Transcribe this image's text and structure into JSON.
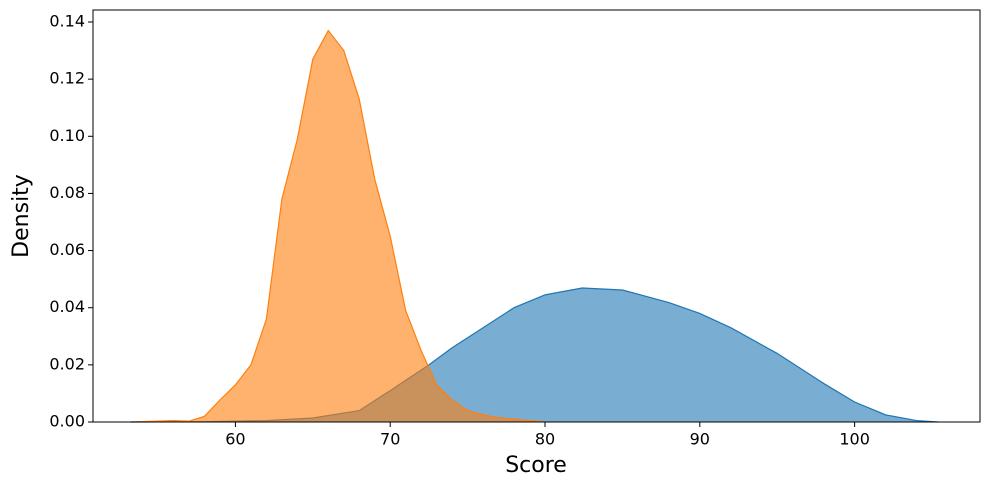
{
  "chart_data": {
    "type": "area",
    "xlabel": "Score",
    "ylabel": "Density",
    "xlim": [
      50.8,
      108.1
    ],
    "ylim": [
      0,
      0.1442
    ],
    "xticks": [
      60,
      70,
      80,
      90,
      100
    ],
    "yticks": [
      {
        "value": 0,
        "label": "0.00"
      },
      {
        "value": 0.02,
        "label": "0.02"
      },
      {
        "value": 0.04,
        "label": "0.04"
      },
      {
        "value": 0.06,
        "label": "0.06"
      },
      {
        "value": 0.08,
        "label": "0.08"
      },
      {
        "value": 0.1,
        "label": "0.10"
      },
      {
        "value": 0.12,
        "label": "0.12"
      },
      {
        "value": 0.14,
        "label": "0.14"
      }
    ],
    "series": [
      {
        "color": "#1f77b4",
        "x": [
          53.2,
          58,
          62,
          65,
          68,
          70,
          72.5,
          74,
          76,
          78,
          80,
          82.4,
          85,
          88,
          90,
          92,
          95,
          98,
          100,
          102,
          104,
          105.4
        ],
        "values": [
          0,
          0.0001,
          0.0005,
          0.0014,
          0.004,
          0.011,
          0.02,
          0.026,
          0.033,
          0.04,
          0.0445,
          0.0469,
          0.0462,
          0.0418,
          0.038,
          0.033,
          0.024,
          0.0135,
          0.007,
          0.0025,
          0.0005,
          0
        ]
      },
      {
        "color": "#ff7f0e",
        "x": [
          53.3,
          55,
          56,
          57,
          58,
          59,
          60,
          61,
          62,
          63,
          64,
          65,
          66,
          67,
          68,
          69,
          70,
          71,
          72,
          73,
          74,
          75,
          76,
          77,
          78,
          79,
          80
        ],
        "values": [
          0,
          0.0003,
          0.0005,
          0.0003,
          0.002,
          0.0077,
          0.013,
          0.02,
          0.036,
          0.078,
          0.099,
          0.127,
          0.137,
          0.13,
          0.113,
          0.085,
          0.065,
          0.039,
          0.025,
          0.013,
          0.0077,
          0.004,
          0.0025,
          0.0015,
          0.001,
          0.0005,
          0
        ]
      }
    ]
  }
}
